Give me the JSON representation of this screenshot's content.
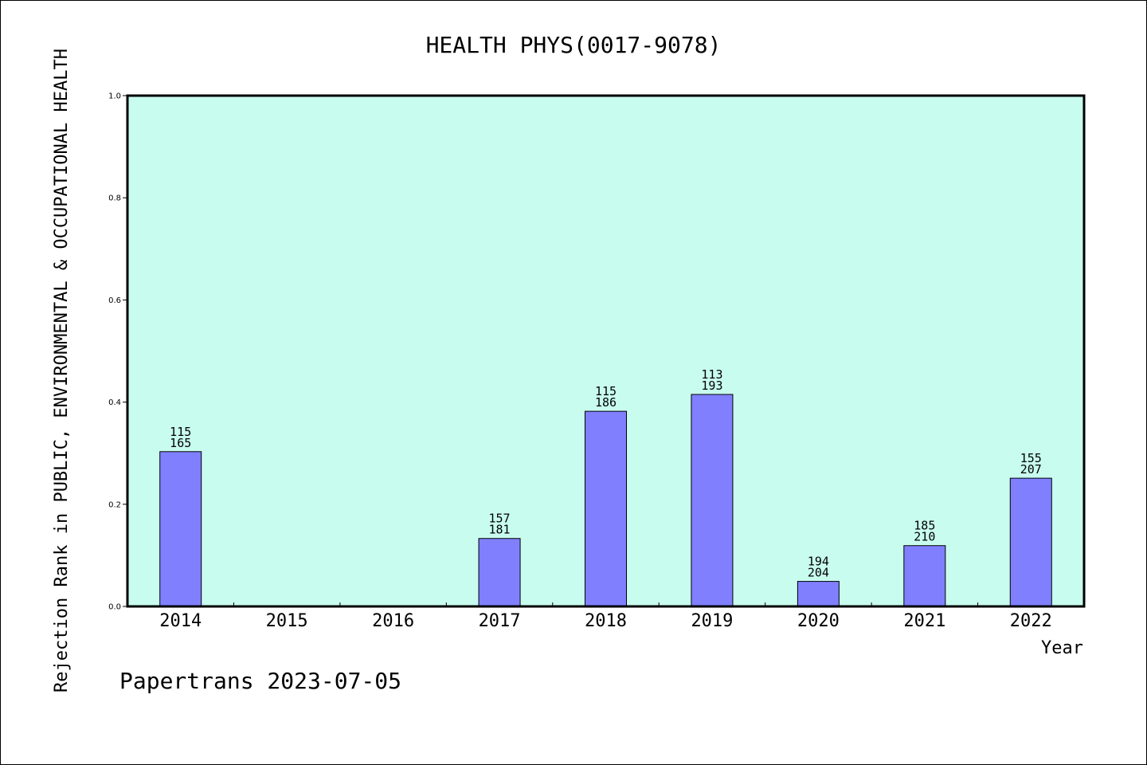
{
  "colors": {
    "plot_background": "#c8fcee",
    "bar_fill": "#8080ff",
    "bar_stroke": "#000000"
  },
  "footer": "Papertrans 2023-07-05",
  "chart_data": {
    "type": "bar",
    "title": "HEALTH PHYS(0017-9078)",
    "xlabel": "Year",
    "ylabel": "Rejection Rank in PUBLIC, ENVIRONMENTAL & OCCUPATIONAL HEALTH",
    "ylim": [
      0,
      1.0
    ],
    "yticks": [
      "0.0",
      "0.2",
      "0.4",
      "0.6",
      "0.8",
      "1.0"
    ],
    "categories": [
      "2014",
      "2015",
      "2016",
      "2017",
      "2018",
      "2019",
      "2020",
      "2021",
      "2022"
    ],
    "values": [
      0.303,
      null,
      null,
      0.133,
      0.382,
      0.415,
      0.049,
      0.119,
      0.251
    ],
    "labels_top": [
      "115",
      "",
      "",
      "157",
      "115",
      "113",
      "194",
      "185",
      "155"
    ],
    "labels_bottom": [
      "165",
      "",
      "",
      "181",
      "186",
      "193",
      "204",
      "210",
      "207"
    ],
    "grid": false,
    "legend": "none"
  }
}
